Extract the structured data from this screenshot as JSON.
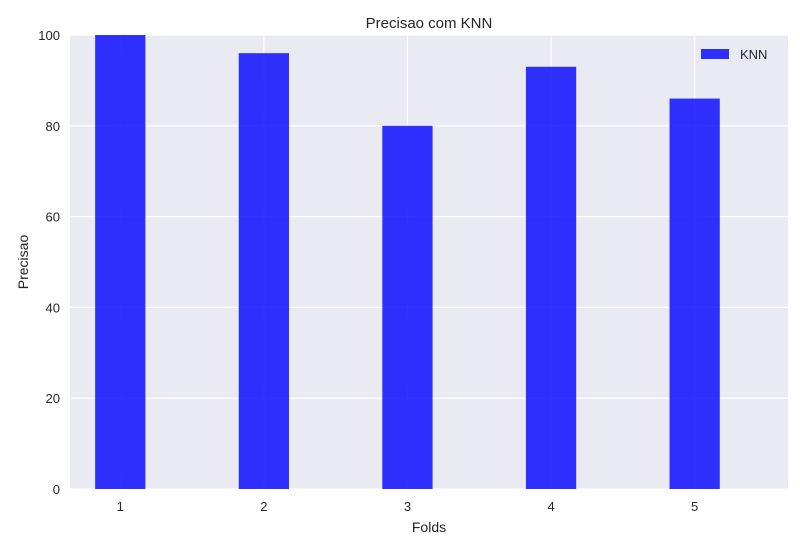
{
  "chart_data": {
    "type": "bar",
    "title": "Precisao com KNN",
    "xlabel": "Folds",
    "ylabel": "Precisao",
    "categories": [
      "1",
      "2",
      "3",
      "4",
      "5"
    ],
    "series": [
      {
        "name": "KNN",
        "values": [
          100,
          96,
          80,
          93,
          86
        ],
        "color": "#0000ff",
        "opacity": 0.8
      }
    ],
    "ylim": [
      0,
      100
    ],
    "yticks": [
      0,
      20,
      40,
      60,
      80,
      100
    ],
    "xlim": [
      0.65,
      5.65
    ],
    "bar_width": 0.35,
    "grid": true,
    "legend": "top-right",
    "background": "#eaeaf2"
  }
}
